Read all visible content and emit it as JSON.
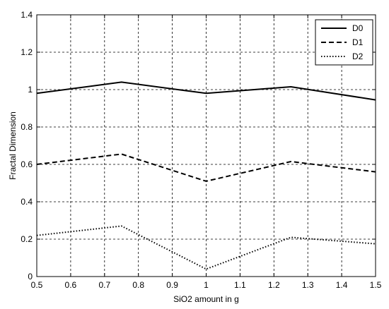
{
  "chart_data": {
    "type": "line",
    "xlabel": "SiO2 amount in g",
    "ylabel": "Fractal Dimension",
    "xlim": [
      0.5,
      1.5
    ],
    "ylim": [
      0,
      1.4
    ],
    "xticks": [
      "0.5",
      "0.6",
      "0.7",
      "0.8",
      "0.9",
      "1",
      "1.1",
      "1.2",
      "1.3",
      "1.4",
      "1.5"
    ],
    "yticks": [
      "0",
      "0.2",
      "0.4",
      "0.6",
      "0.8",
      "1",
      "1.2",
      "1.4"
    ],
    "grid": true,
    "legend_position": "top-right",
    "x": [
      0.5,
      0.75,
      1.0,
      1.25,
      1.5
    ],
    "series": [
      {
        "name": "D0",
        "style": "solid",
        "values": [
          0.98,
          1.04,
          0.98,
          1.015,
          0.945
        ]
      },
      {
        "name": "D1",
        "style": "dashed",
        "values": [
          0.6,
          0.655,
          0.51,
          0.615,
          0.56
        ]
      },
      {
        "name": "D2",
        "style": "dotted",
        "values": [
          0.22,
          0.27,
          0.04,
          0.21,
          0.175
        ]
      }
    ],
    "colors": {
      "line": "#000000",
      "grid": "#000000",
      "background": "#ffffff"
    }
  }
}
